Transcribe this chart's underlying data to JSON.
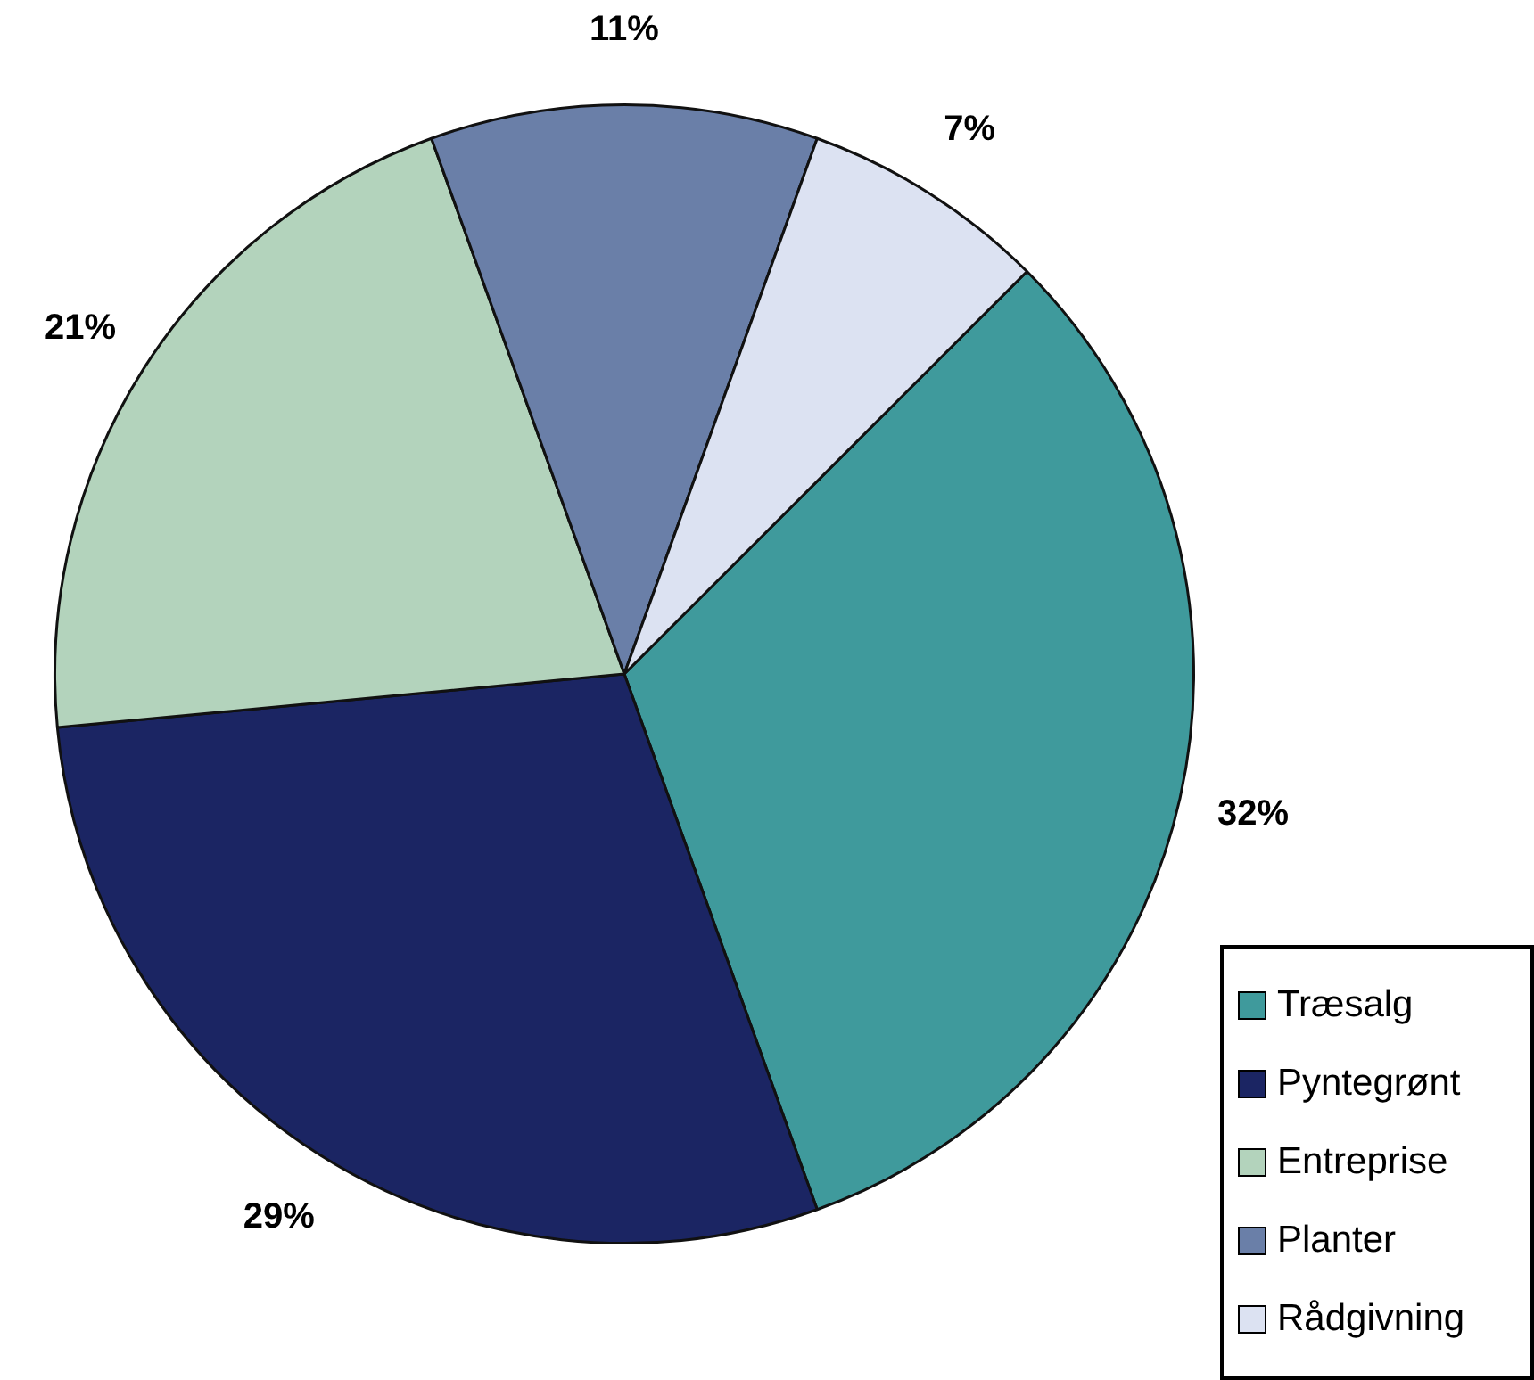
{
  "chart_data": {
    "type": "pie",
    "categories": [
      "Træsalg",
      "Pyntegrønt",
      "Entreprise",
      "Planter",
      "Rådgivning"
    ],
    "values": [
      32,
      29,
      21,
      11,
      7
    ],
    "colors": [
      "#3f9a9c",
      "#1b2563",
      "#b3d3bc",
      "#6a7fa8",
      "#dce2f2"
    ],
    "value_labels": [
      "32%",
      "29%",
      "21%",
      "11%",
      "7%"
    ],
    "legend": "bottom right"
  }
}
